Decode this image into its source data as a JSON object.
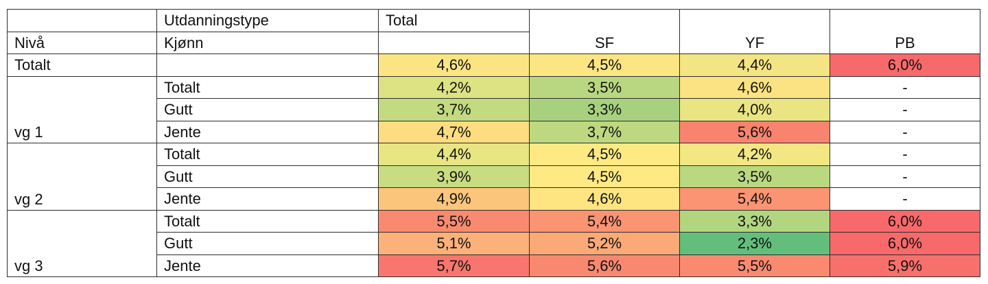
{
  "header": {
    "utdanningstype": "Utdanningstype",
    "total": "Total",
    "niva": "Nivå",
    "kjonn": "Kjønn",
    "sf": "SF",
    "yf": "YF",
    "pb": "PB"
  },
  "totalt_row": {
    "label": "Totalt",
    "total": "4,6%",
    "sf": "4,5%",
    "yf": "4,4%",
    "pb": "6,0%"
  },
  "groups": [
    {
      "level": "vg 1",
      "rows": [
        {
          "gender": "Totalt",
          "total": "4,2%",
          "sf": "3,5%",
          "yf": "4,6%",
          "pb": "-"
        },
        {
          "gender": "Gutt",
          "total": "3,7%",
          "sf": "3,3%",
          "yf": "4,0%",
          "pb": "-"
        },
        {
          "gender": "Jente",
          "total": "4,7%",
          "sf": "3,7%",
          "yf": "5,6%",
          "pb": "-"
        }
      ]
    },
    {
      "level": "vg 2",
      "rows": [
        {
          "gender": "Totalt",
          "total": "4,4%",
          "sf": "4,5%",
          "yf": "4,2%",
          "pb": "-"
        },
        {
          "gender": "Gutt",
          "total": "3,9%",
          "sf": "4,5%",
          "yf": "3,5%",
          "pb": "-"
        },
        {
          "gender": "Jente",
          "total": "4,9%",
          "sf": "4,6%",
          "yf": "5,4%",
          "pb": "-"
        }
      ]
    },
    {
      "level": "vg 3",
      "rows": [
        {
          "gender": "Totalt",
          "total": "5,5%",
          "sf": "5,4%",
          "yf": "3,3%",
          "pb": "6,0%"
        },
        {
          "gender": "Gutt",
          "total": "5,1%",
          "sf": "5,2%",
          "yf": "2,3%",
          "pb": "6,0%"
        },
        {
          "gender": "Jente",
          "total": "5,7%",
          "sf": "5,6%",
          "yf": "5,5%",
          "pb": "5,9%"
        }
      ]
    }
  ],
  "colors": {
    "totalt_row": {
      "total": "#fbe582",
      "sf": "#fbe683",
      "yf": "#f4e584",
      "pb": "#f8696b"
    },
    "groups": [
      [
        {
          "total": "#dde283",
          "sf": "#b9d780",
          "yf": "#fbe282",
          "pb": "#ffffff"
        },
        {
          "total": "#c3da81",
          "sf": "#a8d17f",
          "yf": "#e9e583",
          "pb": "#ffffff"
        },
        {
          "total": "#fedd81",
          "sf": "#bdd880",
          "yf": "#f8846f",
          "pb": "#ffffff"
        }
      ],
      [
        {
          "total": "#e8e583",
          "sf": "#fee982",
          "yf": "#f2e783",
          "pb": "#ffffff"
        },
        {
          "total": "#c9dc81",
          "sf": "#fee982",
          "yf": "#bad880",
          "pb": "#ffffff"
        },
        {
          "total": "#fcc57c",
          "sf": "#fee582",
          "yf": "#fa9473",
          "pb": "#ffffff"
        }
      ],
      [
        {
          "total": "#f98a70",
          "sf": "#fa9473",
          "yf": "#b2d580",
          "pb": "#f8696b"
        },
        {
          "total": "#fcb17a",
          "sf": "#fba976",
          "yf": "#63be7b",
          "pb": "#f8696b"
        },
        {
          "total": "#f8766d",
          "sf": "#f98870",
          "yf": "#f98a70",
          "pb": "#f8706c"
        }
      ]
    ]
  }
}
